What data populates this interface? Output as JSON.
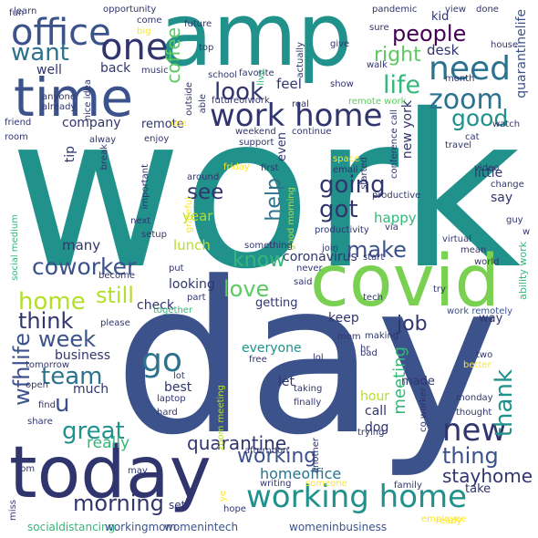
{
  "palette": {
    "teal": "#21918c",
    "navy": "#3b528b",
    "indigo": "#31356e",
    "purple": "#440154",
    "green": "#5ec962",
    "lime": "#b5de2b",
    "yellow": "#fde725",
    "aqua": "#35b779",
    "blue": "#2c728e"
  },
  "words": [
    {
      "text": "work",
      "color": "#21918c"
    },
    {
      "text": "day",
      "color": "#3b528b"
    },
    {
      "text": "amp",
      "color": "#21918c"
    },
    {
      "text": "today",
      "color": "#31356e"
    },
    {
      "text": "covid",
      "color": "#7ad151"
    },
    {
      "text": "time",
      "color": "#3b528b"
    },
    {
      "text": "office",
      "color": "#3b528b"
    },
    {
      "text": "working home",
      "color": "#21918c"
    },
    {
      "text": "work home",
      "color": "#31356e"
    },
    {
      "text": "one",
      "color": "#31356e"
    },
    {
      "text": "need",
      "color": "#2c728e"
    },
    {
      "text": "people",
      "color": "#440154"
    },
    {
      "text": "want",
      "color": "#2c728e"
    },
    {
      "text": "life",
      "color": "#35b779"
    },
    {
      "text": "zoom",
      "color": "#2c728e"
    },
    {
      "text": "look",
      "color": "#31356e"
    },
    {
      "text": "good",
      "color": "#21918c"
    },
    {
      "text": "right",
      "color": "#5ec962"
    },
    {
      "text": "coffee",
      "color": "#5ec962"
    },
    {
      "text": "new",
      "color": "#31356e"
    },
    {
      "text": "thing",
      "color": "#3b528b"
    },
    {
      "text": "thank",
      "color": "#21918c"
    },
    {
      "text": "going",
      "color": "#31356e"
    },
    {
      "text": "got",
      "color": "#31356e"
    },
    {
      "text": "see",
      "color": "#31356e"
    },
    {
      "text": "help",
      "color": "#2c728e"
    },
    {
      "text": "make",
      "color": "#3b528b"
    },
    {
      "text": "know",
      "color": "#35b779"
    },
    {
      "text": "love",
      "color": "#5ec962"
    },
    {
      "text": "home",
      "color": "#b5de2b"
    },
    {
      "text": "still",
      "color": "#b5de2b"
    },
    {
      "text": "coworker",
      "color": "#3b528b"
    },
    {
      "text": "think",
      "color": "#31356e"
    },
    {
      "text": "week",
      "color": "#3b528b"
    },
    {
      "text": "go",
      "color": "#2c728e"
    },
    {
      "text": "team",
      "color": "#2c728e"
    },
    {
      "text": "u",
      "color": "#3b528b"
    },
    {
      "text": "great",
      "color": "#21918c"
    },
    {
      "text": "wfhlife",
      "color": "#3b528b"
    },
    {
      "text": "morning",
      "color": "#31356e"
    },
    {
      "text": "job",
      "color": "#31356e"
    },
    {
      "text": "meeting",
      "color": "#35b779"
    },
    {
      "text": "stayhome",
      "color": "#31356e"
    },
    {
      "text": "quarantine",
      "color": "#31356e"
    },
    {
      "text": "working",
      "color": "#3b528b"
    },
    {
      "text": "homeoffice",
      "color": "#2c728e"
    },
    {
      "text": "really",
      "color": "#35b779"
    },
    {
      "text": "feel",
      "color": "#31356e"
    },
    {
      "text": "new york",
      "color": "#31356e"
    },
    {
      "text": "quarantinelife",
      "color": "#3b528b"
    },
    {
      "text": "company",
      "color": "#31356e"
    },
    {
      "text": "remote",
      "color": "#31356e"
    },
    {
      "text": "tip",
      "color": "#31356e"
    },
    {
      "text": "lunch",
      "color": "#b5de2b"
    },
    {
      "text": "year",
      "color": "#b5de2b"
    },
    {
      "text": "many",
      "color": "#31356e"
    },
    {
      "text": "happy",
      "color": "#35b779"
    },
    {
      "text": "little",
      "color": "#31356e"
    },
    {
      "text": "say",
      "color": "#31356e"
    },
    {
      "text": "desk",
      "color": "#31356e"
    },
    {
      "text": "kid",
      "color": "#31356e"
    },
    {
      "text": "back",
      "color": "#31356e"
    },
    {
      "text": "well",
      "color": "#31356e"
    },
    {
      "text": "even",
      "color": "#31356e"
    },
    {
      "text": "looking",
      "color": "#31356e"
    },
    {
      "text": "check",
      "color": "#31356e"
    },
    {
      "text": "coronavirus",
      "color": "#31356e"
    },
    {
      "text": "getting",
      "color": "#31356e"
    },
    {
      "text": "everyone",
      "color": "#21918c"
    },
    {
      "text": "business",
      "color": "#31356e"
    },
    {
      "text": "much",
      "color": "#31356e"
    },
    {
      "text": "best",
      "color": "#31356e"
    },
    {
      "text": "home office",
      "color": "#3b528b"
    },
    {
      "text": "hour",
      "color": "#b5de2b"
    },
    {
      "text": "made",
      "color": "#31356e"
    },
    {
      "text": "call",
      "color": "#31356e"
    },
    {
      "text": "dog",
      "color": "#31356e"
    },
    {
      "text": "let",
      "color": "#31356e"
    },
    {
      "text": "keep",
      "color": "#31356e"
    },
    {
      "text": "way",
      "color": "#31356e"
    },
    {
      "text": "set",
      "color": "#31356e"
    },
    {
      "text": "take",
      "color": "#31356e"
    },
    {
      "text": "socialdistancing",
      "color": "#35b779"
    },
    {
      "text": "womenintech",
      "color": "#3b528b"
    },
    {
      "text": "womeninbusiness",
      "color": "#3b528b"
    },
    {
      "text": "workingmom",
      "color": "#3b528b"
    },
    {
      "text": "ability work",
      "color": "#35b779"
    },
    {
      "text": "work remotely",
      "color": "#3b528b"
    },
    {
      "text": "co worker",
      "color": "#31356e"
    },
    {
      "text": "social medium",
      "color": "#35b779"
    },
    {
      "text": "learn",
      "color": "#31356e"
    },
    {
      "text": "opportunity",
      "color": "#31356e"
    },
    {
      "text": "come",
      "color": "#31356e"
    },
    {
      "text": "big",
      "color": "#fde725"
    },
    {
      "text": "future",
      "color": "#31356e"
    },
    {
      "text": "top",
      "color": "#31356e"
    },
    {
      "text": "school",
      "color": "#31356e"
    },
    {
      "text": "music",
      "color": "#31356e"
    },
    {
      "text": "give",
      "color": "#31356e"
    },
    {
      "text": "pandemic",
      "color": "#31356e"
    },
    {
      "text": "view",
      "color": "#31356e"
    },
    {
      "text": "done",
      "color": "#31356e"
    },
    {
      "text": "sure",
      "color": "#31356e"
    },
    {
      "text": "house",
      "color": "#31356e"
    },
    {
      "text": "walk",
      "color": "#31356e"
    },
    {
      "text": "month",
      "color": "#31356e"
    },
    {
      "text": "show",
      "color": "#31356e"
    },
    {
      "text": "remote work",
      "color": "#5ec962"
    },
    {
      "text": "anyone",
      "color": "#31356e"
    },
    {
      "text": "already",
      "color": "#31356e"
    },
    {
      "text": "friend",
      "color": "#31356e"
    },
    {
      "text": "room",
      "color": "#31356e"
    },
    {
      "text": "nice idea",
      "color": "#31356e"
    },
    {
      "text": "outside",
      "color": "#31356e"
    },
    {
      "text": "able",
      "color": "#31356e"
    },
    {
      "text": "use",
      "color": "#fde725"
    },
    {
      "text": "futureofwork",
      "color": "#31356e"
    },
    {
      "text": "favorite",
      "color": "#31356e"
    },
    {
      "text": "live",
      "color": "#35b779"
    },
    {
      "text": "actually",
      "color": "#31356e"
    },
    {
      "text": "real",
      "color": "#31356e"
    },
    {
      "text": "alway",
      "color": "#31356e"
    },
    {
      "text": "enjoy",
      "color": "#31356e"
    },
    {
      "text": "weekend",
      "color": "#31356e"
    },
    {
      "text": "support",
      "color": "#31356e"
    },
    {
      "text": "continue",
      "color": "#31356e"
    },
    {
      "text": "conference call",
      "color": "#31356e"
    },
    {
      "text": "watch",
      "color": "#31356e"
    },
    {
      "text": "cat",
      "color": "#31356e"
    },
    {
      "text": "travel",
      "color": "#31356e"
    },
    {
      "text": "break",
      "color": "#31356e"
    },
    {
      "text": "important",
      "color": "#31356e"
    },
    {
      "text": "friday",
      "color": "#fde725"
    },
    {
      "text": "around",
      "color": "#31356e"
    },
    {
      "text": "grateful",
      "color": "#fde725"
    },
    {
      "text": "first",
      "color": "#31356e"
    },
    {
      "text": "space",
      "color": "#fde725"
    },
    {
      "text": "email",
      "color": "#31356e"
    },
    {
      "text": "started",
      "color": "#31356e"
    },
    {
      "text": "productive",
      "color": "#31356e"
    },
    {
      "text": "video",
      "color": "#31356e"
    },
    {
      "text": "change",
      "color": "#31356e"
    },
    {
      "text": "guy",
      "color": "#31356e"
    },
    {
      "text": "next",
      "color": "#31356e"
    },
    {
      "text": "setup",
      "color": "#31356e"
    },
    {
      "text": "good morning",
      "color": "#b5de2b"
    },
    {
      "text": "productivity",
      "color": "#31356e"
    },
    {
      "text": "via",
      "color": "#31356e"
    },
    {
      "text": "virtual",
      "color": "#31356e"
    },
    {
      "text": "mean",
      "color": "#31356e"
    },
    {
      "text": "w",
      "color": "#31356e"
    },
    {
      "text": "something",
      "color": "#31356e"
    },
    {
      "text": "join",
      "color": "#31356e"
    },
    {
      "text": "start",
      "color": "#31356e"
    },
    {
      "text": "world",
      "color": "#31356e"
    },
    {
      "text": "put",
      "color": "#31356e"
    },
    {
      "text": "become",
      "color": "#31356e"
    },
    {
      "text": "never",
      "color": "#31356e"
    },
    {
      "text": "said",
      "color": "#31356e"
    },
    {
      "text": "try",
      "color": "#31356e"
    },
    {
      "text": "part",
      "color": "#31356e"
    },
    {
      "text": "tech",
      "color": "#31356e"
    },
    {
      "text": "together",
      "color": "#35b779"
    },
    {
      "text": "please",
      "color": "#31356e"
    },
    {
      "text": "mom",
      "color": "#31356e"
    },
    {
      "text": "making",
      "color": "#31356e"
    },
    {
      "text": "hr",
      "color": "#31356e"
    },
    {
      "text": "lol",
      "color": "#31356e"
    },
    {
      "text": "free",
      "color": "#31356e"
    },
    {
      "text": "two",
      "color": "#31356e"
    },
    {
      "text": "better",
      "color": "#fde725"
    },
    {
      "text": "lot",
      "color": "#31356e"
    },
    {
      "text": "tomorrow",
      "color": "#31356e"
    },
    {
      "text": "laptop",
      "color": "#31356e"
    },
    {
      "text": "hard",
      "color": "#31356e"
    },
    {
      "text": "zoom meeting",
      "color": "#b5de2b"
    },
    {
      "text": "taking",
      "color": "#31356e"
    },
    {
      "text": "finally",
      "color": "#31356e"
    },
    {
      "text": "bad",
      "color": "#31356e"
    },
    {
      "text": "monday",
      "color": "#31356e"
    },
    {
      "text": "thought",
      "color": "#31356e"
    },
    {
      "text": "trying",
      "color": "#31356e"
    },
    {
      "text": "open",
      "color": "#31356e"
    },
    {
      "text": "find",
      "color": "#31356e"
    },
    {
      "text": "share",
      "color": "#31356e"
    },
    {
      "text": "afternoon",
      "color": "#31356e"
    },
    {
      "text": "another",
      "color": "#31356e"
    },
    {
      "text": "pm",
      "color": "#31356e"
    },
    {
      "text": "may",
      "color": "#31356e"
    },
    {
      "text": "ye",
      "color": "#fde725"
    },
    {
      "text": "writing",
      "color": "#31356e"
    },
    {
      "text": "someone",
      "color": "#fde725"
    },
    {
      "text": "family",
      "color": "#31356e"
    },
    {
      "text": "hope",
      "color": "#31356e"
    },
    {
      "text": "miss",
      "color": "#31356e"
    },
    {
      "text": "employee",
      "color": "#fde725"
    },
    {
      "text": "ready",
      "color": "#fde725"
    },
    {
      "text": "fun",
      "color": "#31356e"
    }
  ]
}
